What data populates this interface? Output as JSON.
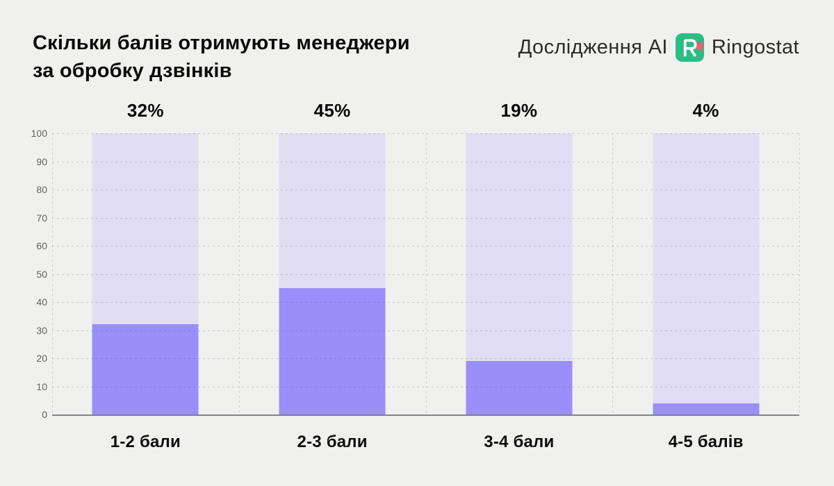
{
  "title": {
    "line1": "Скільки балів отримують менеджери",
    "line2": "за обробку дзвінків"
  },
  "branding": {
    "prefix": "Дослідження AI",
    "brand": "Ringostat",
    "logo_icon": "ringostat-logo",
    "logo_green": "#2ABD84",
    "logo_accent": "#F25E74",
    "logo_glyph": "#FFFFFF"
  },
  "chart_data": {
    "type": "bar",
    "title": "Скільки балів отримують менеджери за обробку дзвінків",
    "categories": [
      "1-2 бали",
      "2-3 бали",
      "3-4 бали",
      "4-5 балів"
    ],
    "values": [
      32,
      45,
      19,
      4
    ],
    "value_labels": [
      "32%",
      "45%",
      "19%",
      "4%"
    ],
    "xlabel": "",
    "ylabel": "",
    "ylim": [
      0,
      100
    ],
    "yticks": [
      100,
      90,
      80,
      70,
      60,
      50,
      40,
      30,
      20,
      10,
      0
    ],
    "grid": "dotted horizontal gridlines at every 10, dotted vertical separators between categories",
    "legend": "none",
    "bar_color": "#9A8EF8",
    "track_color": "#E1DDF3",
    "background_color": "#F0F0EF",
    "axis_line_color": "#83838D"
  }
}
